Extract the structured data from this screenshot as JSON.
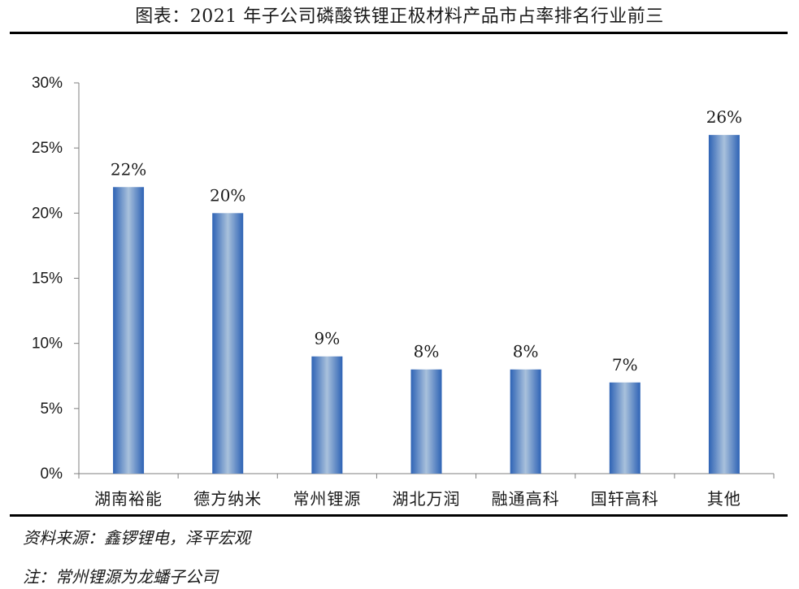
{
  "title": "图表：2021 年子公司磷酸铁锂正极材料产品市占率排名行业前三",
  "source": "资料来源：鑫锣锂电，泽平宏观",
  "note": "注：常州锂源为龙蟠子公司",
  "colors": {
    "bar_edge": "#2e63b5",
    "bar_center": "#a9c1dc",
    "axis": "#7f7f7f",
    "rule": "#000000"
  },
  "chart_data": {
    "type": "bar",
    "categories": [
      "湖南裕能",
      "德方纳米",
      "常州锂源",
      "湖北万润",
      "融通高科",
      "国轩高科",
      "其他"
    ],
    "values": [
      22,
      20,
      9,
      8,
      8,
      7,
      26
    ],
    "value_labels": [
      "22%",
      "20%",
      "9%",
      "8%",
      "8%",
      "7%",
      "26%"
    ],
    "ylim": [
      0,
      30
    ],
    "yticks": [
      0,
      5,
      10,
      15,
      20,
      25,
      30
    ],
    "ytick_labels": [
      "0%",
      "5%",
      "10%",
      "15%",
      "20%",
      "25%",
      "30%"
    ],
    "grid": false,
    "legend": "none"
  }
}
